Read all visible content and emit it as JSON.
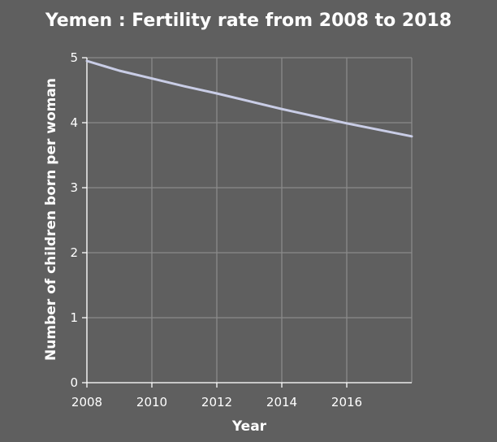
{
  "chart_data": {
    "type": "line",
    "title": "Yemen : Fertility rate from 2008 to 2018",
    "xlabel": "Year",
    "ylabel": "Number of children born per woman",
    "xlim": [
      2008,
      2018
    ],
    "ylim": [
      0,
      5
    ],
    "x_ticks": [
      2008,
      2010,
      2012,
      2014,
      2016
    ],
    "x_tick_labels": [
      "2008",
      "2010",
      "2012",
      "2014",
      "2016"
    ],
    "y_ticks": [
      0,
      1,
      2,
      3,
      4,
      5
    ],
    "y_tick_labels": [
      "0",
      "1",
      "2",
      "3",
      "4",
      "5"
    ],
    "grid": true,
    "series": [
      {
        "x": [
          2008,
          2009,
          2010,
          2011,
          2012,
          2013,
          2014,
          2015,
          2016,
          2017,
          2018
        ],
        "values": [
          4.95,
          4.8,
          4.68,
          4.56,
          4.45,
          4.33,
          4.21,
          4.1,
          3.99,
          3.89,
          3.79
        ],
        "color": "#c9cde6"
      }
    ],
    "colors": {
      "background": "#5f5f5f",
      "grid": "#8a8a8a",
      "text": "#ffffff"
    }
  }
}
